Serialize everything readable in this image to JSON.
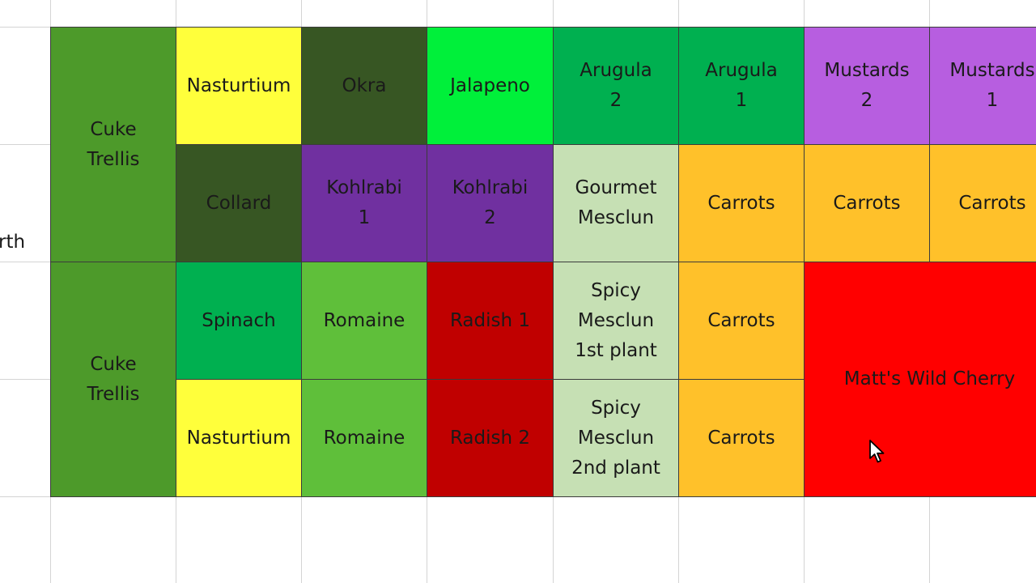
{
  "row_label_fragment": "rth",
  "colors": {
    "cuke_green": "#4d9a2a",
    "yellow": "#ffff3b",
    "dark_green": "#375623",
    "bright_green": "#00f03a",
    "mid_green": "#00b050",
    "purple_light": "#b75ee0",
    "purple_dark": "#7030a0",
    "pale_green": "#c6e0b4",
    "orange": "#ffc12a",
    "light_green": "#5fbf3a",
    "dark_red": "#c00000",
    "red": "#ff0000"
  },
  "plots": [
    {
      "name": "cuke-trellis-top",
      "text": "Cuke\nTrellis",
      "color": "cuke_green"
    },
    {
      "name": "nasturtium-top",
      "text": "Nasturtium",
      "color": "yellow"
    },
    {
      "name": "okra",
      "text": "Okra",
      "color": "dark_green"
    },
    {
      "name": "jalapeno",
      "text": "Jalapeno",
      "color": "bright_green"
    },
    {
      "name": "arugula-2",
      "text": "Arugula\n2",
      "color": "mid_green"
    },
    {
      "name": "arugula-1",
      "text": "Arugula\n1",
      "color": "mid_green"
    },
    {
      "name": "mustards-2",
      "text": "Mustards\n2",
      "color": "purple_light"
    },
    {
      "name": "mustards-1",
      "text": "Mustards\n1",
      "color": "purple_light"
    },
    {
      "name": "collard",
      "text": "Collard",
      "color": "dark_green"
    },
    {
      "name": "kohlrabi-1",
      "text": "Kohlrabi\n1",
      "color": "purple_dark"
    },
    {
      "name": "kohlrabi-2",
      "text": "Kohlrabi\n2",
      "color": "purple_dark"
    },
    {
      "name": "gourmet-mesclun",
      "text": "Gourmet\nMesclun",
      "color": "pale_green"
    },
    {
      "name": "carrots-a",
      "text": "Carrots",
      "color": "orange"
    },
    {
      "name": "carrots-b",
      "text": "Carrots",
      "color": "orange"
    },
    {
      "name": "carrots-c",
      "text": "Carrots",
      "color": "orange"
    },
    {
      "name": "cuke-trellis-bottom",
      "text": "Cuke\nTrellis",
      "color": "cuke_green"
    },
    {
      "name": "spinach",
      "text": "Spinach",
      "color": "mid_green"
    },
    {
      "name": "romaine-top",
      "text": "Romaine",
      "color": "light_green"
    },
    {
      "name": "radish-1",
      "text": "Radish 1",
      "color": "dark_red"
    },
    {
      "name": "spicy-mesclun-1st",
      "text": "Spicy\nMesclun\n1st plant",
      "color": "pale_green"
    },
    {
      "name": "carrots-d",
      "text": "Carrots",
      "color": "orange"
    },
    {
      "name": "matts-wild-cherry",
      "text": "Matt's Wild Cherry",
      "color": "red"
    },
    {
      "name": "nasturtium-bottom",
      "text": "Nasturtium",
      "color": "yellow"
    },
    {
      "name": "romaine-bottom",
      "text": "Romaine",
      "color": "light_green"
    },
    {
      "name": "radish-2",
      "text": "Radish 2",
      "color": "dark_red"
    },
    {
      "name": "spicy-mesclun-2nd",
      "text": "Spicy\nMesclun\n2nd plant",
      "color": "pale_green"
    },
    {
      "name": "carrots-e",
      "text": "Carrots",
      "color": "orange"
    }
  ],
  "cursor_icon": "mouse-pointer-icon"
}
